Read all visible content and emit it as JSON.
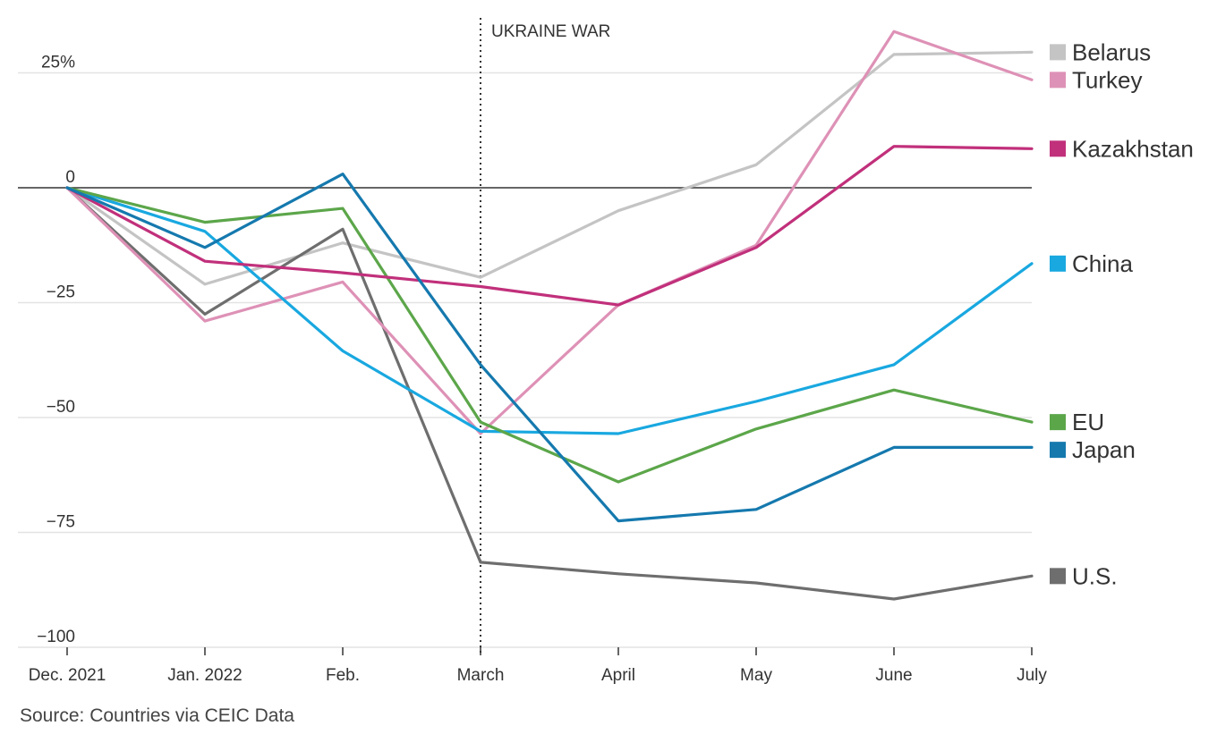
{
  "chart_data": {
    "type": "line",
    "title": "",
    "xlabel": "",
    "ylabel": "",
    "categories": [
      "Dec. 2021",
      "Jan. 2022",
      "Feb.",
      "March",
      "April",
      "May",
      "June",
      "July"
    ],
    "y_ticks": [
      25,
      0,
      -25,
      -50,
      -75,
      -100
    ],
    "y_tick_labels": [
      "25%",
      "0",
      "−25",
      "−50",
      "−75",
      "−100"
    ],
    "ylim": [
      -100,
      33
    ],
    "grid": true,
    "legend_placement": "right, at line ends",
    "annotation": {
      "label": "UKRAINE WAR",
      "category": "March"
    },
    "source": "Source: Countries via CEIC Data",
    "series": [
      {
        "name": "Belarus",
        "color": "#c4c4c4",
        "values": [
          0,
          -21,
          -12,
          -19.5,
          -5,
          5,
          29,
          29.5
        ]
      },
      {
        "name": "Turkey",
        "color": "#de91b6",
        "values": [
          0,
          -29,
          -20.5,
          -53.5,
          -25.5,
          -12.5,
          34,
          23.5
        ]
      },
      {
        "name": "Kazakhstan",
        "color": "#c1307b",
        "values": [
          0,
          -16,
          -18.5,
          -21.5,
          -25.5,
          -13,
          9,
          8.5
        ]
      },
      {
        "name": "China",
        "color": "#19a8e0",
        "values": [
          0,
          -9.5,
          -35.5,
          -53,
          -53.5,
          -46.5,
          -38.5,
          -16.5
        ]
      },
      {
        "name": "EU",
        "color": "#5ca64a",
        "values": [
          0,
          -7.5,
          -4.5,
          -51,
          -64,
          -52.5,
          -44,
          -51
        ]
      },
      {
        "name": "Japan",
        "color": "#1579ae",
        "values": [
          0,
          -13,
          3,
          -38.5,
          -72.5,
          -70,
          -56.5,
          -56.5
        ]
      },
      {
        "name": "U.S.",
        "color": "#6e6e6e",
        "values": [
          0,
          -27.5,
          -9,
          -81.5,
          -84,
          -86,
          -89.5,
          -84.5
        ]
      }
    ],
    "legend_order": [
      "Belarus",
      "Turkey",
      "Kazakhstan",
      "China",
      "EU",
      "Japan",
      "U.S."
    ]
  }
}
